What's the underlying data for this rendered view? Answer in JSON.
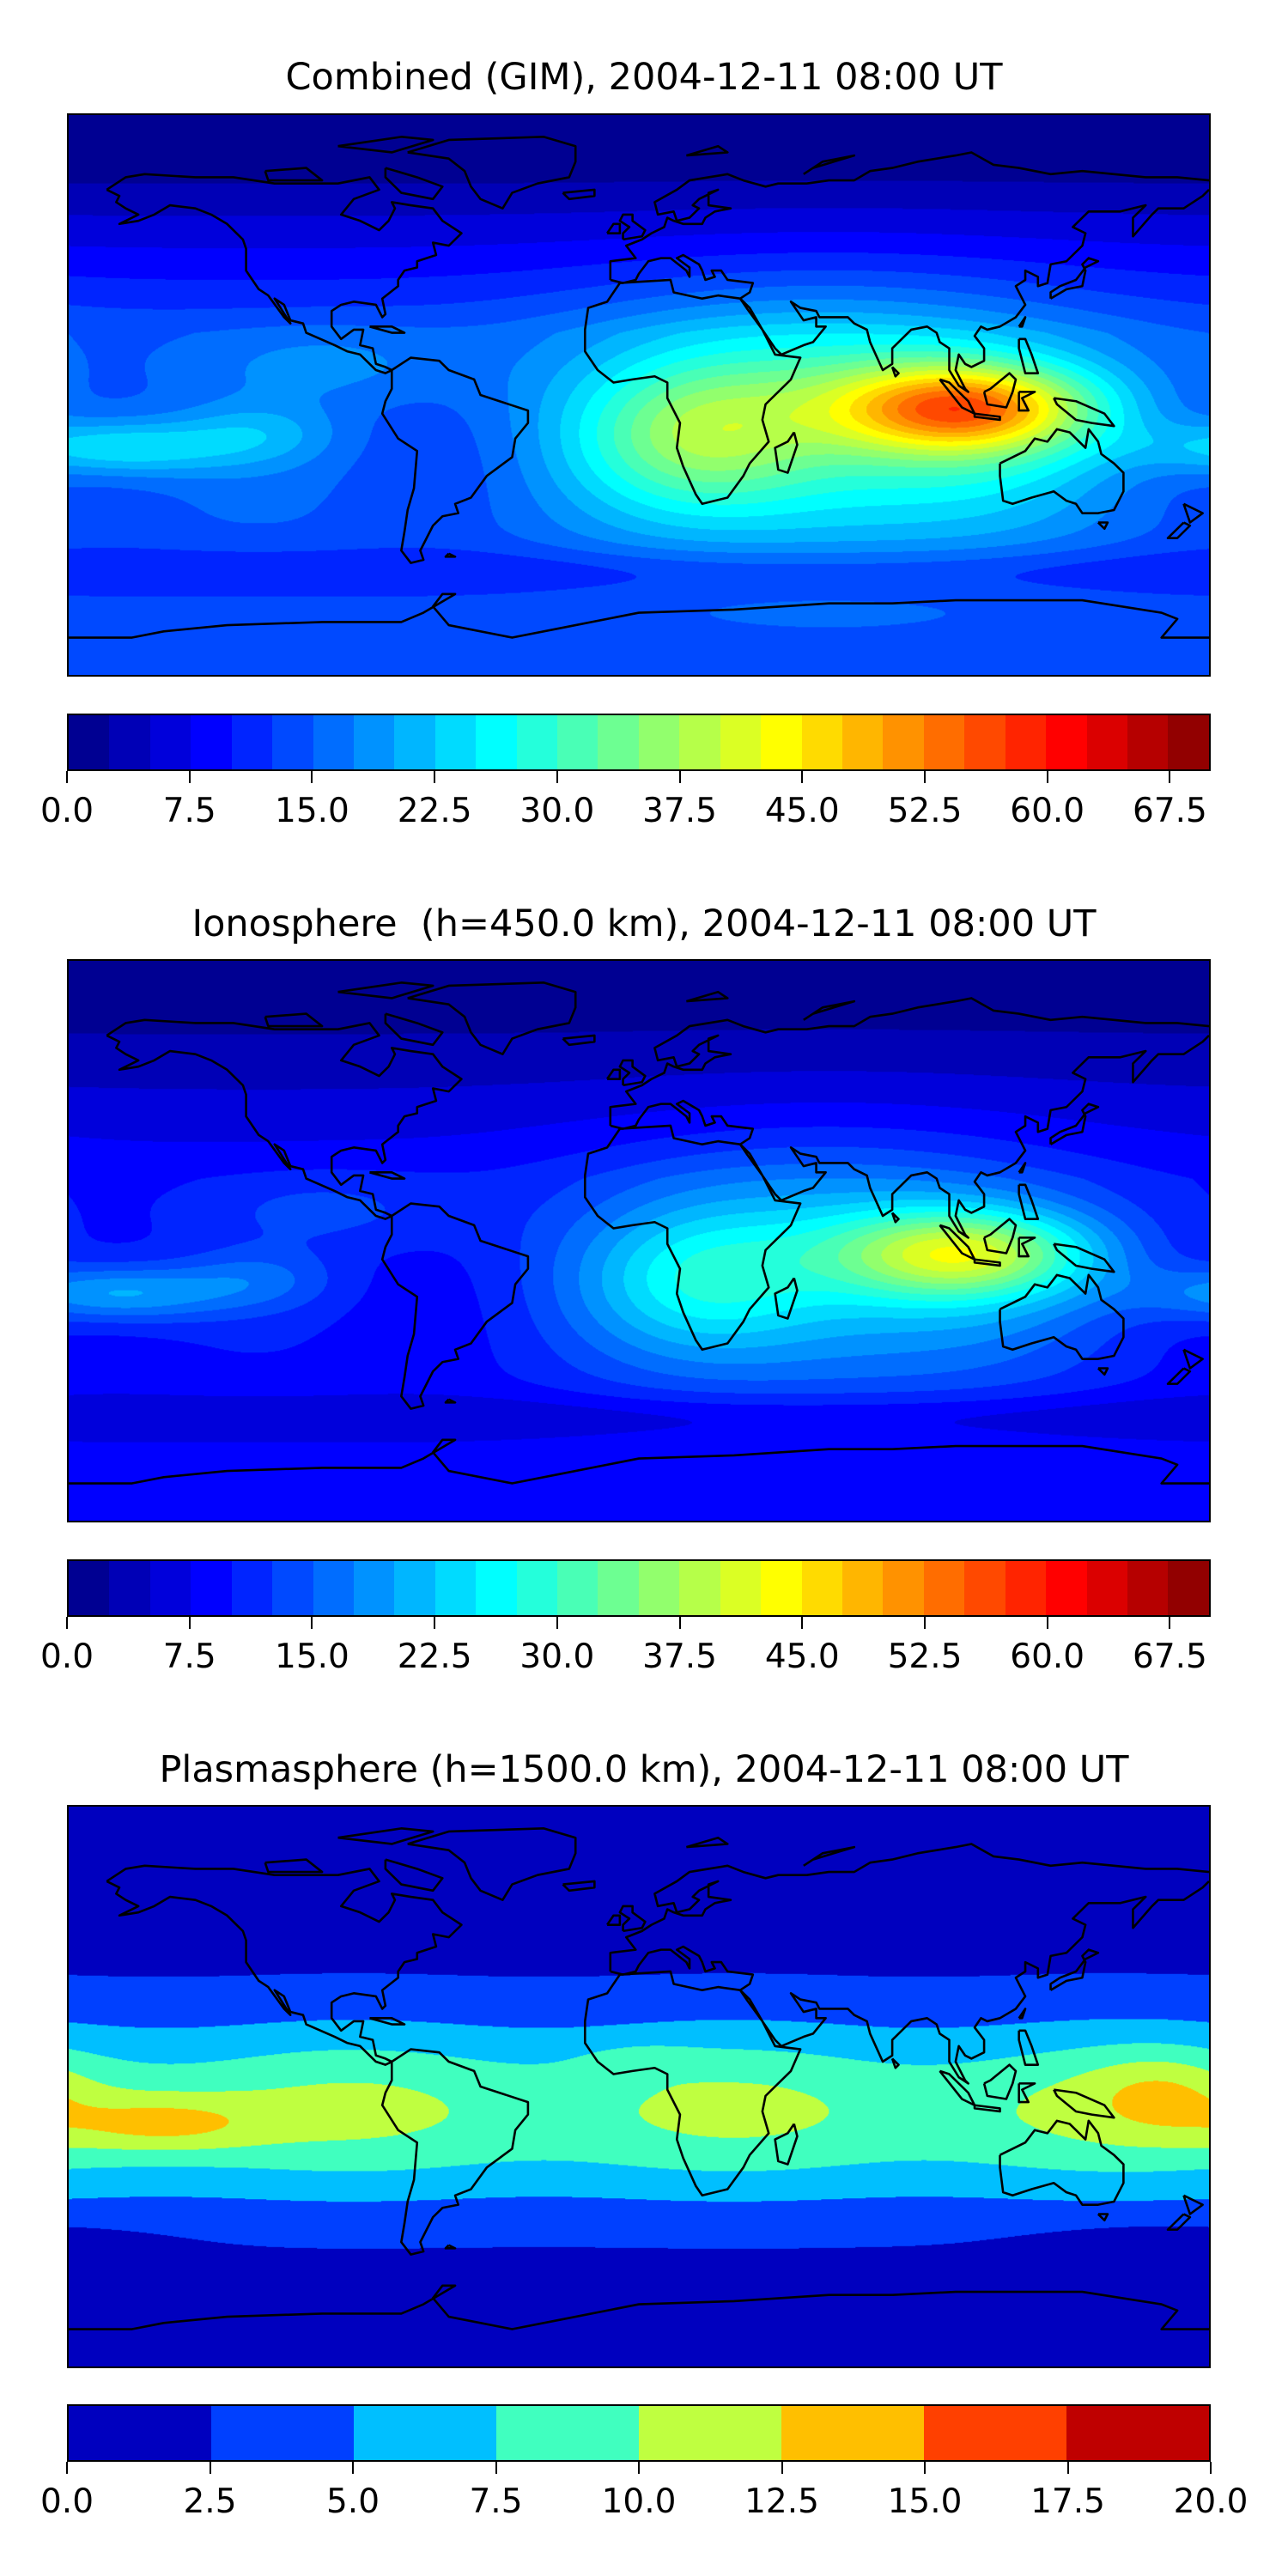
{
  "colormap": "jet",
  "panels": [
    {
      "title": "Combined (GIM), 2004-12-11 08:00 UT",
      "colorbar": {
        "min": 0,
        "max": 70,
        "step": 2.5,
        "ticks": [
          "0.0",
          "7.5",
          "15.0",
          "22.5",
          "30.0",
          "37.5",
          "45.0",
          "52.5",
          "60.0",
          "67.5"
        ]
      }
    },
    {
      "title": "Ionosphere  (h=450.0 km), 2004-12-11 08:00 UT",
      "colorbar": {
        "min": 0,
        "max": 70,
        "step": 2.5,
        "ticks": [
          "0.0",
          "7.5",
          "15.0",
          "22.5",
          "30.0",
          "37.5",
          "45.0",
          "52.5",
          "60.0",
          "67.5"
        ]
      }
    },
    {
      "title": "Plasmasphere (h=1500.0 km), 2004-12-11 08:00 UT",
      "colorbar": {
        "min": 0,
        "max": 20,
        "step": 2.5,
        "ticks": [
          "0.0",
          "2.5",
          "5.0",
          "7.5",
          "10.0",
          "12.5",
          "15.0",
          "17.5",
          "20.0"
        ]
      }
    }
  ],
  "chart_data": [
    {
      "type": "heatmap",
      "title": "Combined (GIM), 2004-12-11 08:00 UT",
      "projection": "PlateCarree",
      "xlim": [
        -180,
        180
      ],
      "ylim": [
        -90,
        90
      ],
      "levels": {
        "min": 0,
        "max": 70,
        "step": 2.5
      },
      "peak_region": "Indonesia / Indian Ocean, ~45-55"
    },
    {
      "type": "heatmap",
      "title": "Ionosphere  (h=450.0 km), 2004-12-11 08:00 UT",
      "projection": "PlateCarree",
      "xlim": [
        -180,
        180
      ],
      "ylim": [
        -90,
        90
      ],
      "levels": {
        "min": 0,
        "max": 70,
        "step": 2.5
      },
      "peak_region": "Indonesia, ~40-45"
    },
    {
      "type": "heatmap",
      "title": "Plasmasphere (h=1500.0 km), 2004-12-11 08:00 UT",
      "projection": "PlateCarree",
      "xlim": [
        -180,
        180
      ],
      "ylim": [
        -90,
        90
      ],
      "levels": {
        "min": 0,
        "max": 20,
        "step": 2.5
      },
      "peak_region": "Central Pacific south of equator, 12.5-15"
    }
  ]
}
